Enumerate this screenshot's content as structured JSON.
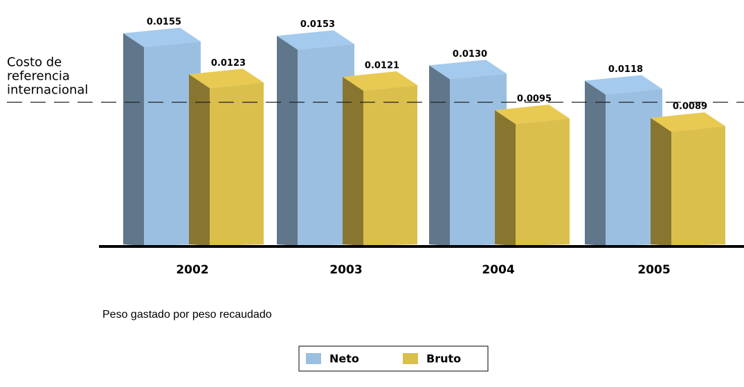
{
  "chart_data": {
    "type": "bar3d",
    "subtitle": "Peso gastado por peso recaudado",
    "categories": [
      "2002",
      "2003",
      "2004",
      "2005"
    ],
    "series": [
      {
        "name": "Neto",
        "color": "#9bbfe0",
        "values": [
          0.0155,
          0.0153,
          0.013,
          0.0118
        ],
        "value_labels": [
          "0.0155",
          "0.0153",
          "0.0130",
          "0.0118"
        ]
      },
      {
        "name": "Bruto",
        "color": "#dbbf4d",
        "values": [
          0.0123,
          0.0121,
          0.0095,
          0.0089
        ],
        "value_labels": [
          "0.0123",
          "0.0121",
          "0.0095",
          "0.0089"
        ]
      }
    ],
    "reference": {
      "label": [
        "Costo de",
        "referencia",
        "internacional"
      ],
      "value": 0.0112
    },
    "ylim": [
      0,
      0.0175
    ],
    "legend": "bottom"
  }
}
